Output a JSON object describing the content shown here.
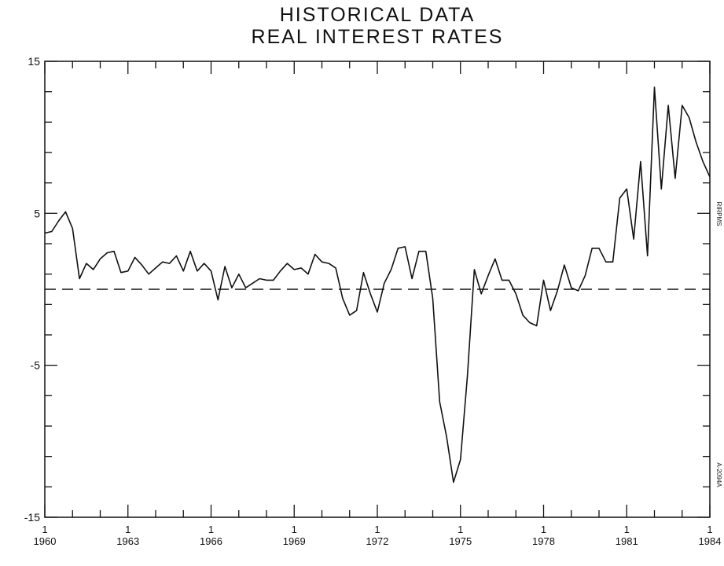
{
  "chart_data": {
    "type": "line",
    "title": [
      "HISTORICAL DATA",
      "REAL INTEREST RATES"
    ],
    "annotations": [
      "RIRPMS",
      "A-2094A"
    ],
    "x": [
      1960,
      1960.25,
      1960.5,
      1960.75,
      1961,
      1961.25,
      1961.5,
      1961.75,
      1962,
      1962.25,
      1962.5,
      1962.75,
      1963,
      1963.25,
      1963.5,
      1963.75,
      1964,
      1964.25,
      1964.5,
      1964.75,
      1965,
      1965.25,
      1965.5,
      1965.75,
      1966,
      1966.25,
      1966.5,
      1966.75,
      1967,
      1967.25,
      1967.5,
      1967.75,
      1968,
      1968.25,
      1968.5,
      1968.75,
      1969,
      1969.25,
      1969.5,
      1969.75,
      1970,
      1970.25,
      1970.5,
      1970.75,
      1971,
      1971.25,
      1971.5,
      1971.75,
      1972,
      1972.25,
      1972.5,
      1972.75,
      1973,
      1973.25,
      1973.5,
      1973.75,
      1974,
      1974.25,
      1974.5,
      1974.75,
      1975,
      1975.25,
      1975.5,
      1975.75,
      1976,
      1976.25,
      1976.5,
      1976.75,
      1977,
      1977.25,
      1977.5,
      1977.75,
      1978,
      1978.25,
      1978.5,
      1978.75,
      1979,
      1979.25,
      1979.5,
      1979.75,
      1980,
      1980.25,
      1980.5,
      1980.75,
      1981,
      1981.25,
      1981.5,
      1981.75,
      1982,
      1982.25,
      1982.5,
      1982.75,
      1983,
      1983.25,
      1983.5,
      1983.75,
      1984
    ],
    "values": [
      3.7,
      3.8,
      4.5,
      5.1,
      4.0,
      0.7,
      1.7,
      1.3,
      2.0,
      2.4,
      2.5,
      1.1,
      1.2,
      2.1,
      1.6,
      1.0,
      1.4,
      1.8,
      1.7,
      2.2,
      1.2,
      2.5,
      1.2,
      1.7,
      1.2,
      -0.7,
      1.5,
      0.1,
      1.0,
      0.1,
      0.4,
      0.7,
      0.6,
      0.6,
      1.2,
      1.7,
      1.3,
      1.4,
      1.0,
      2.3,
      1.8,
      1.7,
      1.4,
      -0.6,
      -1.7,
      -1.4,
      1.1,
      -0.3,
      -1.5,
      0.4,
      1.3,
      2.7,
      2.8,
      0.7,
      2.5,
      2.5,
      -0.6,
      -7.4,
      -9.7,
      -12.7,
      -11.2,
      -5.7,
      1.3,
      -0.3,
      0.9,
      2.0,
      0.6,
      0.6,
      -0.3,
      -1.7,
      -2.2,
      -2.4,
      0.6,
      -1.4,
      -0.1,
      1.6,
      0.1,
      -0.1,
      0.9,
      2.7,
      2.7,
      1.8,
      1.8,
      6.0,
      6.6,
      3.3,
      8.4,
      2.2,
      13.3,
      6.6,
      12.1,
      7.3,
      12.1,
      11.3,
      9.7,
      8.4,
      7.4
    ],
    "color": "#111111",
    "xlim": [
      1960,
      1984
    ],
    "xticks": [
      {
        "value": 1960,
        "label": "1\n1960"
      },
      {
        "value": 1963,
        "label": "1\n1963"
      },
      {
        "value": 1966,
        "label": "1\n1966"
      },
      {
        "value": 1969,
        "label": "1\n1969"
      },
      {
        "value": 1972,
        "label": "1\n1972"
      },
      {
        "value": 1975,
        "label": "1\n1975"
      },
      {
        "value": 1978,
        "label": "1\n1978"
      },
      {
        "value": 1981,
        "label": "1\n1981"
      },
      {
        "value": 1984,
        "label": "1\n1984"
      }
    ],
    "xminor": [
      1961,
      1962,
      1964,
      1965,
      1967,
      1968,
      1970,
      1971,
      1973,
      1974,
      1976,
      1977,
      1979,
      1980,
      1982,
      1983
    ],
    "ylim": [
      -15,
      15
    ],
    "yticks": [
      -15,
      -5,
      5,
      15
    ],
    "yminor": [
      -13,
      -11,
      -9,
      -7,
      -3,
      -1,
      1,
      3,
      7,
      9,
      11,
      13
    ],
    "hline": 0
  }
}
